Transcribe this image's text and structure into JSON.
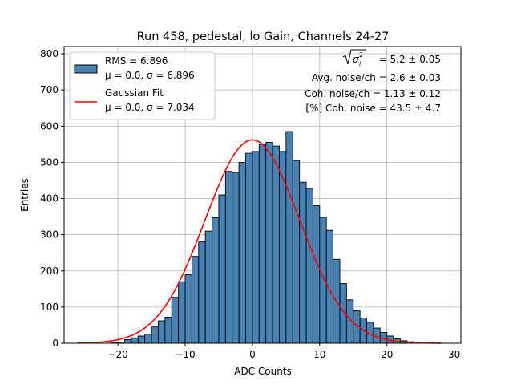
{
  "chart_data": {
    "type": "bar",
    "title": "Run 458, pedestal, lo Gain, Channels 24-27",
    "xlabel": "ADC Counts",
    "ylabel": "Entries",
    "xlim": [
      -28,
      31
    ],
    "ylim": [
      0,
      820
    ],
    "grid": true,
    "xticks": [
      -20,
      -10,
      0,
      10,
      20,
      30
    ],
    "yticks": [
      0,
      100,
      200,
      300,
      400,
      500,
      600,
      700,
      800
    ],
    "series": [
      {
        "name": "histogram",
        "bin_width": 1,
        "bin_edges_start": -21,
        "counts": [
          1,
          3,
          10,
          15,
          20,
          25,
          45,
          62,
          72,
          127,
          170,
          190,
          240,
          280,
          310,
          347,
          410,
          475,
          472,
          500,
          525,
          530,
          550,
          555,
          545,
          530,
          585,
          505,
          445,
          428,
          380,
          348,
          312,
          232,
          165,
          120,
          90,
          70,
          58,
          42,
          30,
          20,
          12,
          7,
          4,
          2,
          1,
          1
        ]
      }
    ],
    "fit": {
      "mu": 0.0,
      "sigma": 7.034,
      "amplitude": 562,
      "x_range": [
        -26,
        28
      ]
    },
    "legend": {
      "placement": "top-left",
      "entries": [
        {
          "line1": "RMS = 6.896",
          "line2": "μ = 0.0, σ = 6.896",
          "kind": "patch"
        },
        {
          "line1": "Gaussian Fit",
          "line2": "μ = 0.0, σ = 7.034",
          "kind": "line"
        }
      ]
    },
    "annotations": {
      "sigma_sum": "= 5.2 ± 0.05",
      "avg_noise": "Avg. noise/ch = 2.6 ± 0.03",
      "coh_noise": "Coh. noise/ch = 1.13 ± 0.12",
      "coh_pct": "[%] Coh. noise = 43.5 ± 4.7"
    },
    "colors": {
      "bar": "#4682b4",
      "fit": "#ff0000",
      "grid": "#b0b0b0"
    }
  }
}
